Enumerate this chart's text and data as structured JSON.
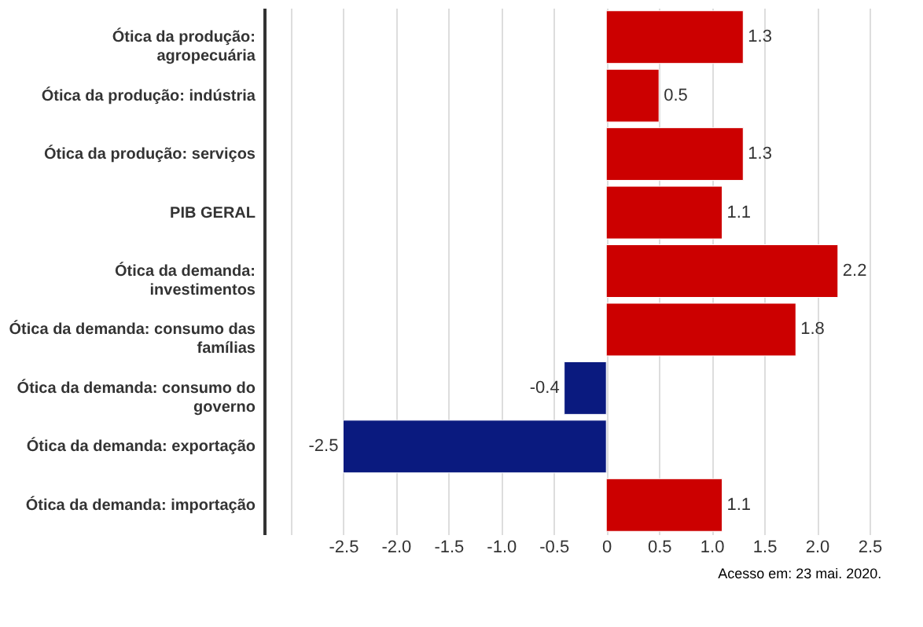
{
  "chart_data": {
    "type": "bar",
    "orientation": "horizontal",
    "categories": [
      "Ótica da produção: agropecuária",
      "Ótica da produção: indústria",
      "Ótica da produção: serviços",
      "PIB GERAL",
      "Ótica da demanda: investimentos",
      "Ótica da demanda: consumo das famílias",
      "Ótica da demanda: consumo do governo",
      "Ótica da demanda: exportação",
      "Ótica da demanda: importação"
    ],
    "values": [
      1.3,
      0.5,
      1.3,
      1.1,
      2.2,
      1.8,
      -0.4,
      -2.5,
      1.1
    ],
    "colors": [
      "#cc0000",
      "#cc0000",
      "#cc0000",
      "#cc0000",
      "#cc0000",
      "#cc0000",
      "#0a1a7f",
      "#0a1a7f",
      "#cc0000"
    ],
    "data_labels": true,
    "grid": "x",
    "xlim": [
      -3.25,
      2.5
    ],
    "xticks": [
      {
        "value": -3,
        "label": null
      },
      -2.5,
      {
        "value": -2,
        "label": "-2.0"
      },
      -1.5,
      {
        "value": -1,
        "label": "-1.0"
      },
      -0.5,
      0,
      0.5,
      {
        "value": 1,
        "label": "1.0"
      },
      1.5,
      {
        "value": 2,
        "label": "2.0"
      },
      2.5
    ],
    "annotations": [
      "Acesso em: 23 mai. 2020."
    ]
  }
}
